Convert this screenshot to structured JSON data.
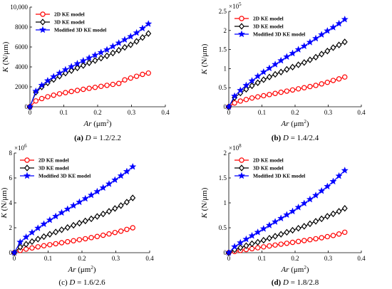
{
  "chart_data": [
    {
      "type": "line",
      "caption": {
        "tag": "(a)",
        "var": "D",
        "value": " = 1.2/2.2"
      },
      "xlabel": {
        "var": "Ar",
        "unit": " (μm",
        "sup": "2",
        "close": ")"
      },
      "ylabel": {
        "var": "K",
        "unit": " (N/μm)"
      },
      "xlim": [
        0,
        0.4
      ],
      "ylim": [
        0,
        10000
      ],
      "xticks": [
        0,
        0.1,
        0.2,
        0.3,
        0.4
      ],
      "xtick_labels": [
        "0",
        "0.1",
        "0.2",
        "0.3",
        "0.4"
      ],
      "yticks": [
        0,
        2000,
        4000,
        6000,
        8000,
        10000
      ],
      "ytick_labels": [
        "0",
        "2000",
        "4000",
        "6000",
        "8000",
        "10,000"
      ],
      "multiplier": null,
      "legend_position": "top-left",
      "series": [
        {
          "name": "2D KE model",
          "color": "#ff0000",
          "marker": "circle",
          "x": [
            0,
            0.0175,
            0.035,
            0.0525,
            0.07,
            0.0875,
            0.105,
            0.1225,
            0.14,
            0.1575,
            0.175,
            0.1925,
            0.21,
            0.2275,
            0.245,
            0.2625,
            0.28,
            0.2975,
            0.315,
            0.3325,
            0.35
          ],
          "y": [
            0,
            585,
            825,
            1005,
            1160,
            1300,
            1420,
            1535,
            1645,
            1750,
            1850,
            1950,
            2050,
            2150,
            2245,
            2340,
            2700,
            2880,
            3060,
            3250,
            3380
          ]
        },
        {
          "name": "3D KE model",
          "color": "#000000",
          "marker": "diamond",
          "x": [
            0,
            0.0175,
            0.035,
            0.0525,
            0.07,
            0.0875,
            0.105,
            0.1225,
            0.14,
            0.1575,
            0.175,
            0.1925,
            0.21,
            0.2275,
            0.245,
            0.2625,
            0.28,
            0.2975,
            0.315,
            0.3325,
            0.35
          ],
          "y": [
            0,
            1460,
            1990,
            2400,
            2740,
            3070,
            3380,
            3630,
            3900,
            4140,
            4410,
            4640,
            4880,
            5110,
            5390,
            5670,
            5960,
            6220,
            6560,
            6950,
            7350
          ]
        },
        {
          "name": "Modified 3D KE model",
          "color": "#0000ff",
          "marker": "star",
          "x": [
            0,
            0.0175,
            0.035,
            0.0525,
            0.07,
            0.0875,
            0.105,
            0.1225,
            0.14,
            0.1575,
            0.175,
            0.1925,
            0.21,
            0.2275,
            0.245,
            0.2625,
            0.28,
            0.2975,
            0.315,
            0.3325,
            0.35
          ],
          "y": [
            0,
            1560,
            2160,
            2620,
            3020,
            3380,
            3720,
            4030,
            4330,
            4620,
            4900,
            5180,
            5450,
            5720,
            6060,
            6400,
            6730,
            7050,
            7420,
            7870,
            8320
          ]
        }
      ]
    },
    {
      "type": "line",
      "caption": {
        "tag": "(b)",
        "var": "D",
        "value": " = 1.4/2.4"
      },
      "xlabel": {
        "var": "Ar",
        "unit": " (μm",
        "sup": "2",
        "close": ")"
      },
      "ylabel": {
        "var": "K",
        "unit": " (N/μm)"
      },
      "xlim": [
        0,
        0.4
      ],
      "ylim": [
        0,
        2.5
      ],
      "xticks": [
        0,
        0.1,
        0.2,
        0.3,
        0.4
      ],
      "xtick_labels": [
        "0",
        "0.1",
        "0.2",
        "0.3",
        "0.4"
      ],
      "yticks": [
        0,
        0.5,
        1,
        1.5,
        2,
        2.5
      ],
      "ytick_labels": [
        "0",
        "0.5",
        "1",
        "1.5",
        "2",
        "2.5"
      ],
      "multiplier": {
        "base": "×10",
        "exp": "5"
      },
      "legend_position": "top-left",
      "series": [
        {
          "name": "2D KE model",
          "color": "#ff0000",
          "marker": "circle",
          "x": [
            0,
            0.0175,
            0.035,
            0.0525,
            0.07,
            0.0875,
            0.105,
            0.1225,
            0.14,
            0.1575,
            0.175,
            0.1925,
            0.21,
            0.2275,
            0.245,
            0.2625,
            0.28,
            0.2975,
            0.315,
            0.3325,
            0.35
          ],
          "y": [
            0,
            0.1,
            0.15,
            0.19,
            0.23,
            0.26,
            0.29,
            0.32,
            0.35,
            0.38,
            0.41,
            0.44,
            0.47,
            0.5,
            0.53,
            0.56,
            0.6,
            0.64,
            0.69,
            0.73,
            0.78
          ]
        },
        {
          "name": "3D KE model",
          "color": "#000000",
          "marker": "diamond",
          "x": [
            0,
            0.0175,
            0.035,
            0.0525,
            0.07,
            0.0875,
            0.105,
            0.1225,
            0.14,
            0.1575,
            0.175,
            0.1925,
            0.21,
            0.2275,
            0.245,
            0.2625,
            0.28,
            0.2975,
            0.315,
            0.3325,
            0.35
          ],
          "y": [
            0,
            0.24,
            0.36,
            0.46,
            0.55,
            0.63,
            0.71,
            0.78,
            0.85,
            0.91,
            0.98,
            1.04,
            1.1,
            1.16,
            1.23,
            1.3,
            1.38,
            1.46,
            1.55,
            1.62,
            1.7
          ]
        },
        {
          "name": "Modified 3D KE model",
          "color": "#0000ff",
          "marker": "star",
          "x": [
            0,
            0.0175,
            0.035,
            0.0525,
            0.07,
            0.0875,
            0.105,
            0.1225,
            0.14,
            0.1575,
            0.175,
            0.1925,
            0.21,
            0.2275,
            0.245,
            0.2625,
            0.28,
            0.2975,
            0.315,
            0.3325,
            0.35
          ],
          "y": [
            0,
            0.28,
            0.43,
            0.56,
            0.68,
            0.8,
            0.91,
            1.01,
            1.11,
            1.21,
            1.31,
            1.4,
            1.5,
            1.59,
            1.69,
            1.79,
            1.89,
            1.99,
            2.08,
            2.18,
            2.29
          ]
        }
      ]
    },
    {
      "type": "line",
      "caption": {
        "tag": "",
        "var": "D",
        "value": " = 1.6/2.6",
        "prefix": "(c) "
      },
      "xlabel": {
        "var": "Ar",
        "unit": " (μm",
        "sup": "2",
        "close": ")"
      },
      "ylabel": {
        "var": "K",
        "unit": " (N/μm)"
      },
      "xlim": [
        0,
        0.4
      ],
      "ylim": [
        0,
        8
      ],
      "xticks": [
        0,
        0.1,
        0.2,
        0.3,
        0.4
      ],
      "xtick_labels": [
        "0",
        "0.1",
        "0.2",
        "0.3",
        "0.4"
      ],
      "yticks": [
        0,
        2,
        4,
        6,
        8
      ],
      "ytick_labels": [
        "0",
        "2",
        "4",
        "6",
        "8"
      ],
      "multiplier": {
        "base": "×10",
        "exp": "6"
      },
      "legend_position": "top-left",
      "series": [
        {
          "name": "2D KE model",
          "color": "#ff0000",
          "marker": "circle",
          "x": [
            0,
            0.0175,
            0.035,
            0.0525,
            0.07,
            0.0875,
            0.105,
            0.1225,
            0.14,
            0.1575,
            0.175,
            0.1925,
            0.21,
            0.2275,
            0.245,
            0.2625,
            0.28,
            0.2975,
            0.315,
            0.3325,
            0.35
          ],
          "y": [
            0,
            0.18,
            0.29,
            0.38,
            0.47,
            0.56,
            0.64,
            0.72,
            0.8,
            0.88,
            0.96,
            1.04,
            1.12,
            1.21,
            1.3,
            1.4,
            1.51,
            1.62,
            1.73,
            1.87,
            2.0
          ]
        },
        {
          "name": "3D KE model",
          "color": "#000000",
          "marker": "diamond",
          "x": [
            0,
            0.0175,
            0.035,
            0.0525,
            0.07,
            0.0875,
            0.105,
            0.1225,
            0.14,
            0.1575,
            0.175,
            0.1925,
            0.21,
            0.2275,
            0.245,
            0.2625,
            0.28,
            0.2975,
            0.315,
            0.3325,
            0.35
          ],
          "y": [
            0,
            0.45,
            0.68,
            0.89,
            1.09,
            1.29,
            1.48,
            1.66,
            1.84,
            2.02,
            2.2,
            2.37,
            2.55,
            2.72,
            2.91,
            3.11,
            3.32,
            3.55,
            3.78,
            4.06,
            4.4
          ]
        },
        {
          "name": "Modified 3D KE model",
          "color": "#0000ff",
          "marker": "star",
          "x": [
            0,
            0.0175,
            0.035,
            0.0525,
            0.07,
            0.0875,
            0.105,
            0.1225,
            0.14,
            0.1575,
            0.175,
            0.1925,
            0.21,
            0.2275,
            0.245,
            0.2625,
            0.28,
            0.2975,
            0.315,
            0.3325,
            0.35
          ],
          "y": [
            0,
            0.85,
            1.25,
            1.62,
            1.97,
            2.3,
            2.62,
            2.92,
            3.21,
            3.5,
            3.78,
            4.06,
            4.34,
            4.62,
            4.91,
            5.21,
            5.52,
            5.84,
            6.17,
            6.52,
            6.9
          ]
        }
      ]
    },
    {
      "type": "line",
      "caption": {
        "tag": "(d)",
        "var": "D",
        "value": " = 1.8/2.8"
      },
      "xlabel": {
        "var": "Ar",
        "unit": " (μm",
        "sup": "2",
        "close": ")"
      },
      "ylabel": {
        "var": "K",
        "unit": " (N/μm)"
      },
      "xlim": [
        0,
        0.4
      ],
      "ylim": [
        0,
        2
      ],
      "xticks": [
        0,
        0.1,
        0.2,
        0.3,
        0.4
      ],
      "xtick_labels": [
        "0",
        "0.1",
        "0.2",
        "0.3",
        "0.4"
      ],
      "yticks": [
        0,
        0.5,
        1,
        1.5,
        2
      ],
      "ytick_labels": [
        "0",
        "0.5",
        "1",
        "1.5",
        "2"
      ],
      "multiplier": {
        "base": "×10",
        "exp": "8"
      },
      "legend_position": "top-left",
      "series": [
        {
          "name": "2D KE model",
          "color": "#ff0000",
          "marker": "circle",
          "x": [
            0,
            0.0175,
            0.035,
            0.0525,
            0.07,
            0.0875,
            0.105,
            0.1225,
            0.14,
            0.1575,
            0.175,
            0.1925,
            0.21,
            0.2275,
            0.245,
            0.2625,
            0.28,
            0.2975,
            0.315,
            0.3325,
            0.35
          ],
          "y": [
            0,
            0.025,
            0.045,
            0.063,
            0.081,
            0.099,
            0.117,
            0.135,
            0.153,
            0.171,
            0.189,
            0.207,
            0.225,
            0.243,
            0.261,
            0.28,
            0.3,
            0.322,
            0.345,
            0.375,
            0.41
          ]
        },
        {
          "name": "3D KE model",
          "color": "#000000",
          "marker": "diamond",
          "x": [
            0,
            0.0175,
            0.035,
            0.0525,
            0.07,
            0.0875,
            0.105,
            0.1225,
            0.14,
            0.1575,
            0.175,
            0.1925,
            0.21,
            0.2275,
            0.245,
            0.2625,
            0.28,
            0.2975,
            0.315,
            0.3325,
            0.35
          ],
          "y": [
            0,
            0.06,
            0.1,
            0.14,
            0.18,
            0.21,
            0.25,
            0.29,
            0.33,
            0.37,
            0.41,
            0.45,
            0.49,
            0.53,
            0.58,
            0.63,
            0.68,
            0.73,
            0.78,
            0.83,
            0.89
          ]
        },
        {
          "name": "Modified 3D KE model",
          "color": "#0000ff",
          "marker": "star",
          "x": [
            0,
            0.0175,
            0.035,
            0.0525,
            0.07,
            0.0875,
            0.105,
            0.1225,
            0.14,
            0.1575,
            0.175,
            0.1925,
            0.21,
            0.2275,
            0.245,
            0.2625,
            0.28,
            0.2975,
            0.315,
            0.3325,
            0.35
          ],
          "y": [
            0,
            0.12,
            0.2,
            0.27,
            0.34,
            0.41,
            0.48,
            0.55,
            0.62,
            0.69,
            0.76,
            0.83,
            0.91,
            0.99,
            1.07,
            1.15,
            1.24,
            1.33,
            1.43,
            1.54,
            1.65
          ]
        }
      ]
    }
  ]
}
